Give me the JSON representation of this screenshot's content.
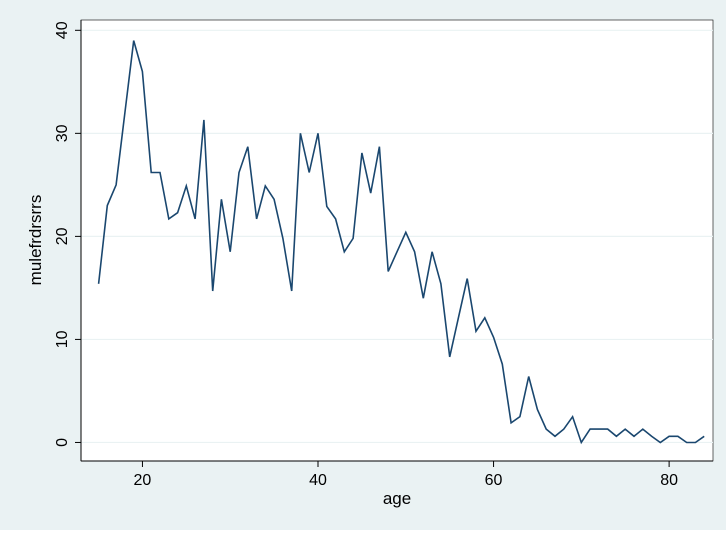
{
  "chart_data": {
    "type": "line",
    "xlabel": "age",
    "ylabel": "mulefrdrsrrs",
    "xlim": [
      13,
      85
    ],
    "ylim": [
      -1.8,
      41
    ],
    "x_ticks": [
      20,
      40,
      60,
      80
    ],
    "y_ticks": [
      0,
      10,
      20,
      30,
      40
    ],
    "grid": "horizontal",
    "colors": {
      "line": "#1a476f",
      "plot_bg": "#ffffff",
      "outer_bg": "#eaf2f3",
      "grid": "#eaf2f3"
    },
    "series": [
      {
        "x": [
          15,
          16,
          17,
          18,
          19,
          20,
          21,
          22,
          23,
          24,
          25,
          26,
          27,
          28,
          29,
          30,
          31,
          32,
          33,
          34,
          35,
          36,
          37,
          38,
          39,
          40,
          41,
          42,
          43,
          44,
          45,
          46,
          47,
          48,
          49,
          50,
          51,
          52,
          53,
          54,
          55,
          56,
          57,
          58,
          59,
          60,
          61,
          62,
          63,
          64,
          65,
          66,
          67,
          68,
          69,
          70,
          71,
          72,
          73,
          74,
          75,
          76,
          77,
          78,
          79,
          80,
          81,
          82,
          83,
          84
        ],
        "values": [
          15.4,
          23,
          25,
          32,
          39,
          36,
          26.2,
          26.2,
          21.7,
          22.3,
          24.9,
          21.7,
          31.3,
          14.7,
          23.6,
          18.5,
          26.2,
          28.7,
          21.7,
          24.9,
          23.6,
          19.8,
          14.7,
          30,
          26.2,
          30,
          22.9,
          21.7,
          18.5,
          19.8,
          28.1,
          24.2,
          28.7,
          16.6,
          18.5,
          20.4,
          18.5,
          14,
          18.5,
          15.4,
          8.3,
          12.1,
          15.9,
          10.8,
          12.1,
          10.2,
          7.6,
          1.9,
          2.5,
          6.4,
          3.2,
          1.3,
          0.6,
          1.3,
          2.5,
          0,
          1.3,
          1.3,
          1.3,
          0.6,
          1.3,
          0.6,
          1.3,
          0.6,
          0,
          0.6,
          0.6,
          0,
          0,
          0.6
        ]
      }
    ]
  }
}
